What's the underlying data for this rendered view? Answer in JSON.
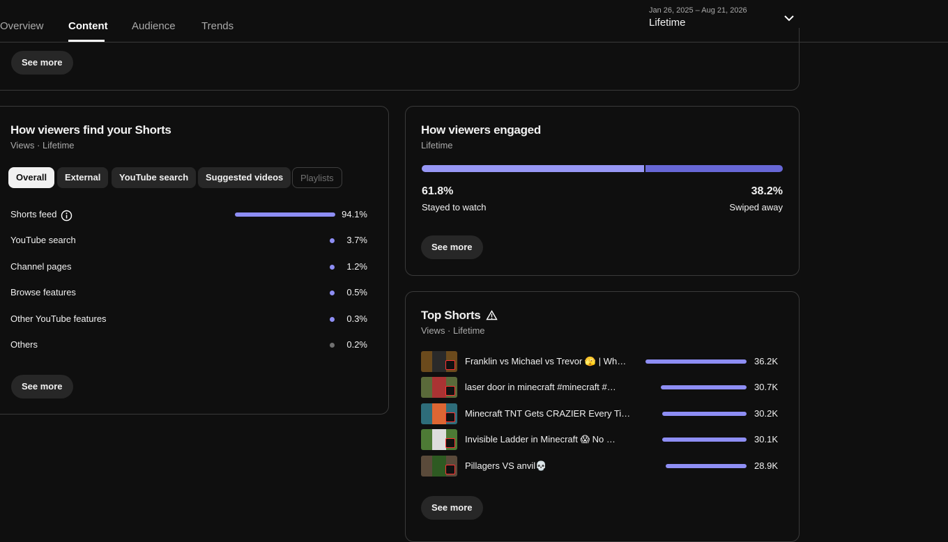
{
  "tabs": [
    "Overview",
    "Content",
    "Audience",
    "Trends"
  ],
  "date_range": {
    "range": "Jan 26, 2025 – Aug 21, 2026",
    "label": "Lifetime"
  },
  "top_card": {
    "button": "See more"
  },
  "traffic": {
    "title": "How viewers find your Shorts",
    "subtitle": "Views · Lifetime",
    "filters": [
      "Overall",
      "External",
      "YouTube search",
      "Suggested videos",
      "Playlists"
    ],
    "labels": [
      "Shorts feed",
      "YouTube search",
      "Channel pages",
      "Browse features",
      "Other YouTube features",
      "Others"
    ],
    "values": [
      94.1,
      3.7,
      1.2,
      0.5,
      0.3,
      0.2
    ],
    "value_labels": [
      "94.1%",
      "3.7%",
      "1.2%",
      "0.5%",
      "0.3%",
      "0.2%"
    ],
    "colors": [
      "#8e8ef4",
      "#8e8ef4",
      "#8e8ef4",
      "#8e8ef4",
      "#8e8ef4",
      "#717171"
    ],
    "button": "See more"
  },
  "engagement": {
    "title": "How viewers engaged",
    "subtitle": "Lifetime",
    "labels": [
      "Stayed to watch",
      "Swiped away"
    ],
    "values": [
      61.8,
      38.2
    ],
    "value_labels": [
      "61.8%",
      "38.2%"
    ],
    "colors": [
      "#9797f5",
      "#6767d6"
    ],
    "button": "See more"
  },
  "top_shorts": {
    "title": "Top Shorts",
    "subtitle": "Views · Lifetime",
    "titles": [
      "Franklin vs Michael vs Trevor 🫣 | Wh…",
      "laser door in minecraft #minecraft #…",
      "Minecraft TNT Gets CRAZIER Every Ti…",
      "Invisible Ladder in Minecraft 😱 No …",
      "Pillagers VS anvil💀"
    ],
    "values": [
      36200,
      30700,
      30200,
      30100,
      28900
    ],
    "value_labels": [
      "36.2K",
      "30.7K",
      "30.2K",
      "30.1K",
      "28.9K"
    ],
    "color": "#8e8ef4",
    "button": "See more"
  }
}
